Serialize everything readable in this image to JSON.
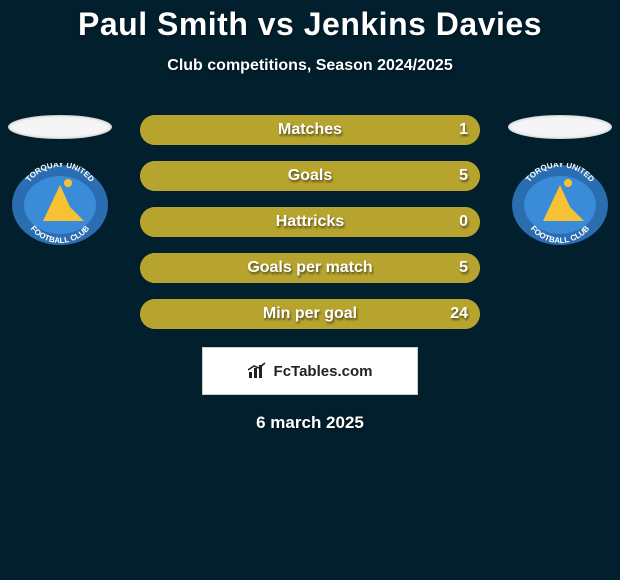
{
  "colors": {
    "page_bg": "#021f2d",
    "text": "#ffffff",
    "accent": "#b7a42e",
    "stat_track": "#b7a42e",
    "stat_fill": "#b7a42e",
    "badge_ring": "#2a6db0",
    "badge_inner": "#3a8bd8",
    "badge_peak": "#f6c233",
    "badge_text": "#ffffff"
  },
  "title": "Paul Smith vs Jenkins Davies",
  "subtitle": "Club competitions, Season 2024/2025",
  "stats": [
    {
      "label": "Matches",
      "value": "1"
    },
    {
      "label": "Goals",
      "value": "5"
    },
    {
      "label": "Hattricks",
      "value": "0"
    },
    {
      "label": "Goals per match",
      "value": "5"
    },
    {
      "label": "Min per goal",
      "value": "24"
    }
  ],
  "club": {
    "name": "Torquay United Football Club",
    "top_text": "TORQUAY UNITED",
    "bottom_text": "FOOTBALL CLUB"
  },
  "footer": {
    "brand": "FcTables.com"
  },
  "date": "6 march 2025"
}
